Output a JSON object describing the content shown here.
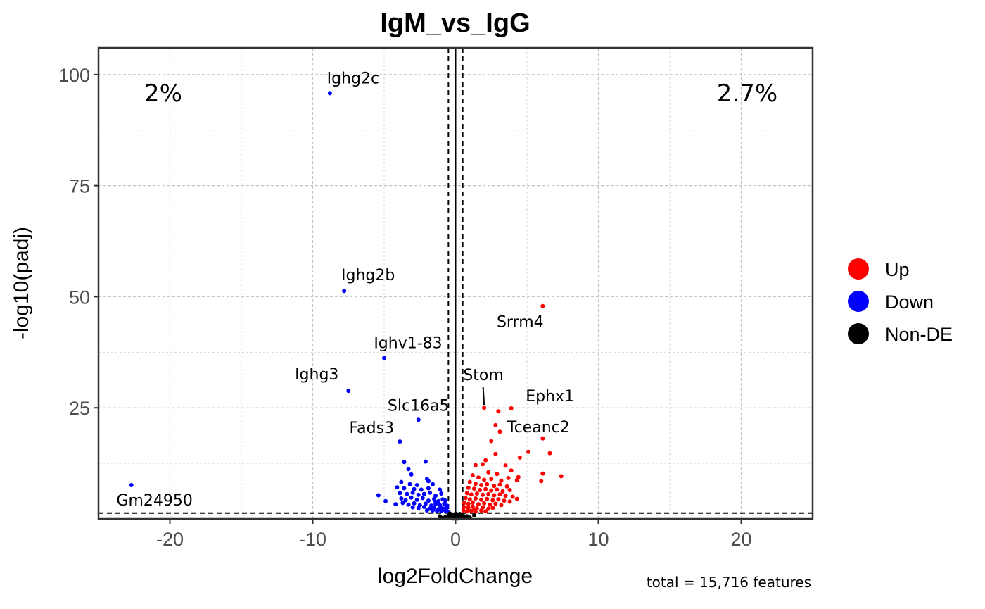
{
  "chart_data": {
    "type": "scatter",
    "title": "IgM_vs_IgG",
    "xlabel": "log2FoldChange",
    "ylabel": "-log10(padj)",
    "xlim": [
      -25,
      25
    ],
    "ylim": [
      0,
      106
    ],
    "xticks": [
      -20,
      -10,
      0,
      10,
      20
    ],
    "yticks": [
      25,
      50,
      75,
      100
    ],
    "xtick_labels": [
      "-20",
      "-10",
      "0",
      "10",
      "20"
    ],
    "ytick_labels": [
      "25",
      "50",
      "75",
      "100"
    ],
    "fc_threshold": 0.5,
    "padj_threshold_line": 1.3,
    "down_percent": "2%",
    "up_percent": "2.7%",
    "caption": "total = 15,716 features",
    "colors": {
      "up": "#ff0000",
      "down": "#0000ff",
      "nonde": "#000000"
    },
    "legend": [
      {
        "key": "up",
        "label": "Up"
      },
      {
        "key": "down",
        "label": "Down"
      },
      {
        "key": "nonde",
        "label": "Non-DE"
      }
    ],
    "labeled_genes": [
      {
        "gene": "Ighg2c",
        "x": -8.8,
        "y": 95.8,
        "group": "down"
      },
      {
        "gene": "Ighg2b",
        "x": -7.8,
        "y": 51.3,
        "group": "down"
      },
      {
        "gene": "Ighv1-83",
        "x": -5.0,
        "y": 36.2,
        "group": "down"
      },
      {
        "gene": "Ighg3",
        "x": -7.5,
        "y": 28.8,
        "group": "down"
      },
      {
        "gene": "Slc16a5",
        "x": -2.6,
        "y": 22.3,
        "group": "down"
      },
      {
        "gene": "Fads3",
        "x": -3.9,
        "y": 17.4,
        "group": "down"
      },
      {
        "gene": "Gm24950",
        "x": -22.7,
        "y": 7.6,
        "group": "down"
      },
      {
        "gene": "Srrm4",
        "x": 6.1,
        "y": 47.9,
        "group": "up"
      },
      {
        "gene": "Stom",
        "x": 2.0,
        "y": 25.0,
        "group": "up"
      },
      {
        "gene": "Ephx1",
        "x": 3.9,
        "y": 24.9,
        "group": "up"
      },
      {
        "gene": "Tceanc2",
        "x": 6.1,
        "y": 18.1,
        "group": "up"
      }
    ],
    "points": [
      {
        "x": -3.6,
        "y": 12.8,
        "g": "down"
      },
      {
        "x": -3.3,
        "y": 11.2,
        "g": "down"
      },
      {
        "x": -2.1,
        "y": 12.9,
        "g": "down"
      },
      {
        "x": -3.1,
        "y": 10.0,
        "g": "down"
      },
      {
        "x": -2.0,
        "y": 9.0,
        "g": "down"
      },
      {
        "x": -1.9,
        "y": 8.5,
        "g": "down"
      },
      {
        "x": -3.8,
        "y": 8.3,
        "g": "down"
      },
      {
        "x": -3.2,
        "y": 7.8,
        "g": "down"
      },
      {
        "x": -2.7,
        "y": 7.6,
        "g": "down"
      },
      {
        "x": -1.6,
        "y": 7.8,
        "g": "down"
      },
      {
        "x": -4.1,
        "y": 7.1,
        "g": "down"
      },
      {
        "x": -3.6,
        "y": 6.9,
        "g": "down"
      },
      {
        "x": -2.9,
        "y": 6.7,
        "g": "down"
      },
      {
        "x": -2.4,
        "y": 6.6,
        "g": "down"
      },
      {
        "x": -1.9,
        "y": 6.9,
        "g": "down"
      },
      {
        "x": -1.1,
        "y": 6.6,
        "g": "down"
      },
      {
        "x": -5.4,
        "y": 5.3,
        "g": "down"
      },
      {
        "x": -3.9,
        "y": 5.8,
        "g": "down"
      },
      {
        "x": -3.4,
        "y": 5.6,
        "g": "down"
      },
      {
        "x": -3.0,
        "y": 5.9,
        "g": "down"
      },
      {
        "x": -2.6,
        "y": 5.4,
        "g": "down"
      },
      {
        "x": -2.2,
        "y": 5.6,
        "g": "down"
      },
      {
        "x": -1.8,
        "y": 5.9,
        "g": "down"
      },
      {
        "x": -1.4,
        "y": 5.2,
        "g": "down"
      },
      {
        "x": -1.0,
        "y": 5.7,
        "g": "down"
      },
      {
        "x": -4.9,
        "y": 4.0,
        "g": "down"
      },
      {
        "x": -3.8,
        "y": 4.6,
        "g": "down"
      },
      {
        "x": -3.5,
        "y": 4.2,
        "g": "down"
      },
      {
        "x": -3.1,
        "y": 4.8,
        "g": "down"
      },
      {
        "x": -2.7,
        "y": 4.3,
        "g": "down"
      },
      {
        "x": -2.3,
        "y": 4.7,
        "g": "down"
      },
      {
        "x": -1.9,
        "y": 4.1,
        "g": "down"
      },
      {
        "x": -1.5,
        "y": 4.5,
        "g": "down"
      },
      {
        "x": -1.2,
        "y": 4.0,
        "g": "down"
      },
      {
        "x": -0.9,
        "y": 4.4,
        "g": "down"
      },
      {
        "x": -0.7,
        "y": 4.1,
        "g": "down"
      },
      {
        "x": -4.2,
        "y": 3.3,
        "g": "down"
      },
      {
        "x": -3.7,
        "y": 3.6,
        "g": "down"
      },
      {
        "x": -3.3,
        "y": 3.2,
        "g": "down"
      },
      {
        "x": -2.9,
        "y": 3.5,
        "g": "down"
      },
      {
        "x": -2.5,
        "y": 3.1,
        "g": "down"
      },
      {
        "x": -2.1,
        "y": 3.4,
        "g": "down"
      },
      {
        "x": -1.7,
        "y": 3.0,
        "g": "down"
      },
      {
        "x": -1.4,
        "y": 3.3,
        "g": "down"
      },
      {
        "x": -1.1,
        "y": 3.1,
        "g": "down"
      },
      {
        "x": -0.8,
        "y": 3.4,
        "g": "down"
      },
      {
        "x": -0.6,
        "y": 3.0,
        "g": "down"
      },
      {
        "x": -3.0,
        "y": 2.6,
        "g": "down"
      },
      {
        "x": -2.6,
        "y": 2.4,
        "g": "down"
      },
      {
        "x": -2.2,
        "y": 2.7,
        "g": "down"
      },
      {
        "x": -1.8,
        "y": 2.3,
        "g": "down"
      },
      {
        "x": -1.5,
        "y": 2.5,
        "g": "down"
      },
      {
        "x": -1.2,
        "y": 2.2,
        "g": "down"
      },
      {
        "x": -1.0,
        "y": 2.6,
        "g": "down"
      },
      {
        "x": -0.8,
        "y": 2.3,
        "g": "down"
      },
      {
        "x": -0.6,
        "y": 2.5,
        "g": "down"
      },
      {
        "x": -1.6,
        "y": 1.9,
        "g": "down"
      },
      {
        "x": -1.3,
        "y": 1.8,
        "g": "down"
      },
      {
        "x": -1.0,
        "y": 1.7,
        "g": "down"
      },
      {
        "x": -0.7,
        "y": 1.8,
        "g": "down"
      },
      {
        "x": -0.55,
        "y": 1.6,
        "g": "down"
      },
      {
        "x": -2.0,
        "y": 1.9,
        "g": "down"
      },
      {
        "x": -0.9,
        "y": 2.0,
        "g": "down"
      },
      {
        "x": -1.4,
        "y": 3.8,
        "g": "down"
      },
      {
        "x": 3.0,
        "y": 24.2,
        "g": "up"
      },
      {
        "x": 2.8,
        "y": 21.1,
        "g": "up"
      },
      {
        "x": 3.1,
        "y": 19.6,
        "g": "up"
      },
      {
        "x": 2.5,
        "y": 17.5,
        "g": "up"
      },
      {
        "x": 5.1,
        "y": 15.1,
        "g": "up"
      },
      {
        "x": 6.6,
        "y": 14.8,
        "g": "up"
      },
      {
        "x": 2.8,
        "y": 14.6,
        "g": "up"
      },
      {
        "x": 4.5,
        "y": 13.8,
        "g": "up"
      },
      {
        "x": 2.1,
        "y": 13.2,
        "g": "up"
      },
      {
        "x": 1.4,
        "y": 12.1,
        "g": "up"
      },
      {
        "x": 1.9,
        "y": 12.3,
        "g": "up"
      },
      {
        "x": 3.5,
        "y": 12.0,
        "g": "up"
      },
      {
        "x": 6.1,
        "y": 10.2,
        "g": "up"
      },
      {
        "x": 7.4,
        "y": 9.6,
        "g": "up"
      },
      {
        "x": 4.4,
        "y": 9.4,
        "g": "up"
      },
      {
        "x": 6.0,
        "y": 8.5,
        "g": "up"
      },
      {
        "x": 2.3,
        "y": 10.5,
        "g": "up"
      },
      {
        "x": 2.9,
        "y": 10.1,
        "g": "up"
      },
      {
        "x": 3.9,
        "y": 10.9,
        "g": "up"
      },
      {
        "x": 1.2,
        "y": 9.8,
        "g": "up"
      },
      {
        "x": 1.6,
        "y": 9.3,
        "g": "up"
      },
      {
        "x": 2.0,
        "y": 8.8,
        "g": "up"
      },
      {
        "x": 2.5,
        "y": 9.0,
        "g": "up"
      },
      {
        "x": 3.2,
        "y": 8.6,
        "g": "up"
      },
      {
        "x": 3.7,
        "y": 9.2,
        "g": "up"
      },
      {
        "x": 4.3,
        "y": 8.7,
        "g": "up"
      },
      {
        "x": 1.0,
        "y": 8.3,
        "g": "up"
      },
      {
        "x": 1.4,
        "y": 7.9,
        "g": "up"
      },
      {
        "x": 1.8,
        "y": 7.6,
        "g": "up"
      },
      {
        "x": 2.2,
        "y": 7.8,
        "g": "up"
      },
      {
        "x": 2.7,
        "y": 7.4,
        "g": "up"
      },
      {
        "x": 3.1,
        "y": 7.7,
        "g": "up"
      },
      {
        "x": 3.6,
        "y": 7.3,
        "g": "up"
      },
      {
        "x": 0.9,
        "y": 7.0,
        "g": "up"
      },
      {
        "x": 1.3,
        "y": 6.8,
        "g": "up"
      },
      {
        "x": 1.7,
        "y": 6.5,
        "g": "up"
      },
      {
        "x": 2.1,
        "y": 6.7,
        "g": "up"
      },
      {
        "x": 2.5,
        "y": 6.4,
        "g": "up"
      },
      {
        "x": 2.9,
        "y": 6.6,
        "g": "up"
      },
      {
        "x": 3.3,
        "y": 6.2,
        "g": "up"
      },
      {
        "x": 3.8,
        "y": 6.5,
        "g": "up"
      },
      {
        "x": 0.8,
        "y": 5.8,
        "g": "up"
      },
      {
        "x": 1.1,
        "y": 5.5,
        "g": "up"
      },
      {
        "x": 1.5,
        "y": 5.7,
        "g": "up"
      },
      {
        "x": 1.9,
        "y": 5.4,
        "g": "up"
      },
      {
        "x": 2.3,
        "y": 5.6,
        "g": "up"
      },
      {
        "x": 2.7,
        "y": 5.3,
        "g": "up"
      },
      {
        "x": 3.1,
        "y": 5.5,
        "g": "up"
      },
      {
        "x": 3.5,
        "y": 5.2,
        "g": "up"
      },
      {
        "x": 4.0,
        "y": 5.0,
        "g": "up"
      },
      {
        "x": 4.3,
        "y": 4.5,
        "g": "up"
      },
      {
        "x": 0.7,
        "y": 4.7,
        "g": "up"
      },
      {
        "x": 1.0,
        "y": 4.4,
        "g": "up"
      },
      {
        "x": 1.4,
        "y": 4.6,
        "g": "up"
      },
      {
        "x": 1.8,
        "y": 4.3,
        "g": "up"
      },
      {
        "x": 2.2,
        "y": 4.5,
        "g": "up"
      },
      {
        "x": 2.6,
        "y": 4.2,
        "g": "up"
      },
      {
        "x": 3.0,
        "y": 4.4,
        "g": "up"
      },
      {
        "x": 3.4,
        "y": 4.1,
        "g": "up"
      },
      {
        "x": 3.8,
        "y": 3.9,
        "g": "up"
      },
      {
        "x": 0.6,
        "y": 3.6,
        "g": "up"
      },
      {
        "x": 0.9,
        "y": 3.4,
        "g": "up"
      },
      {
        "x": 1.2,
        "y": 3.7,
        "g": "up"
      },
      {
        "x": 1.6,
        "y": 3.3,
        "g": "up"
      },
      {
        "x": 2.0,
        "y": 3.5,
        "g": "up"
      },
      {
        "x": 2.4,
        "y": 3.2,
        "g": "up"
      },
      {
        "x": 2.8,
        "y": 3.4,
        "g": "up"
      },
      {
        "x": 3.2,
        "y": 3.1,
        "g": "up"
      },
      {
        "x": 0.6,
        "y": 2.7,
        "g": "up"
      },
      {
        "x": 0.9,
        "y": 2.5,
        "g": "up"
      },
      {
        "x": 1.2,
        "y": 2.8,
        "g": "up"
      },
      {
        "x": 1.5,
        "y": 2.4,
        "g": "up"
      },
      {
        "x": 1.9,
        "y": 2.6,
        "g": "up"
      },
      {
        "x": 2.3,
        "y": 2.3,
        "g": "up"
      },
      {
        "x": 2.6,
        "y": 2.5,
        "g": "up"
      },
      {
        "x": 0.55,
        "y": 1.9,
        "g": "up"
      },
      {
        "x": 0.8,
        "y": 1.7,
        "g": "up"
      },
      {
        "x": 1.1,
        "y": 1.8,
        "g": "up"
      },
      {
        "x": 1.4,
        "y": 1.6,
        "g": "up"
      },
      {
        "x": 1.8,
        "y": 1.9,
        "g": "up"
      },
      {
        "x": 2.1,
        "y": 1.7,
        "g": "up"
      },
      {
        "x": 1.3,
        "y": 2.1,
        "g": "up"
      },
      {
        "x": -0.4,
        "y": 1.2,
        "g": "nonde"
      },
      {
        "x": -0.3,
        "y": 0.9,
        "g": "nonde"
      },
      {
        "x": -0.2,
        "y": 0.6,
        "g": "nonde"
      },
      {
        "x": -0.1,
        "y": 0.4,
        "g": "nonde"
      },
      {
        "x": 0.0,
        "y": 0.2,
        "g": "nonde"
      },
      {
        "x": 0.1,
        "y": 0.5,
        "g": "nonde"
      },
      {
        "x": 0.2,
        "y": 0.8,
        "g": "nonde"
      },
      {
        "x": 0.3,
        "y": 1.1,
        "g": "nonde"
      },
      {
        "x": 0.4,
        "y": 0.7,
        "g": "nonde"
      },
      {
        "x": -0.45,
        "y": 0.5,
        "g": "nonde"
      },
      {
        "x": 0.45,
        "y": 0.3,
        "g": "nonde"
      },
      {
        "x": -0.25,
        "y": 1.0,
        "g": "nonde"
      },
      {
        "x": 0.25,
        "y": 0.2,
        "g": "nonde"
      },
      {
        "x": -0.05,
        "y": 0.9,
        "g": "nonde"
      },
      {
        "x": 0.05,
        "y": 1.1,
        "g": "nonde"
      },
      {
        "x": -0.35,
        "y": 0.3,
        "g": "nonde"
      },
      {
        "x": 0.35,
        "y": 0.9,
        "g": "nonde"
      },
      {
        "x": -0.15,
        "y": 0.1,
        "g": "nonde"
      },
      {
        "x": 0.15,
        "y": 0.1,
        "g": "nonde"
      },
      {
        "x": 0.6,
        "y": 0.4,
        "g": "nonde"
      },
      {
        "x": 0.8,
        "y": 0.6,
        "g": "nonde"
      },
      {
        "x": 1.0,
        "y": 0.3,
        "g": "nonde"
      },
      {
        "x": -0.7,
        "y": 0.5,
        "g": "nonde"
      },
      {
        "x": -0.9,
        "y": 0.2,
        "g": "nonde"
      },
      {
        "x": -1.1,
        "y": 0.6,
        "g": "nonde"
      },
      {
        "x": 1.3,
        "y": 0.8,
        "g": "nonde"
      },
      {
        "x": -0.5,
        "y": 0.8,
        "g": "nonde"
      },
      {
        "x": 0.5,
        "y": 1.0,
        "g": "nonde"
      }
    ]
  }
}
